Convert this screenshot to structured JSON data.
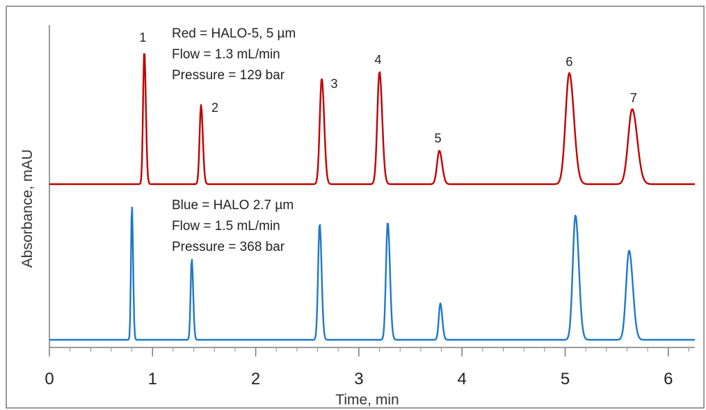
{
  "chart_data": {
    "type": "line",
    "xlabel": "Time, min",
    "ylabel": "Absorbance, mAU",
    "xlim": [
      0,
      6.28
    ],
    "x_ticks": [
      0,
      1,
      2,
      3,
      4,
      5,
      6
    ],
    "x_minor_step": 0.2,
    "grid": false,
    "legend": "none",
    "series": [
      {
        "key": "red",
        "color": "#c00000",
        "annotation_lines": [
          "Red = HALO-5, 5 µm",
          "Flow = 1.3 mL/min",
          "Pressure = 129 bar"
        ],
        "peaks": [
          {
            "label": "1",
            "t": 0.92,
            "height": 1.0,
            "width": 0.012
          },
          {
            "label": "2",
            "t": 1.47,
            "height": 0.59,
            "width": 0.014
          },
          {
            "label": "3",
            "t": 2.64,
            "height": 0.79,
            "width": 0.019
          },
          {
            "label": "4",
            "t": 3.2,
            "height": 0.84,
            "width": 0.021
          },
          {
            "label": "5",
            "t": 3.78,
            "height": 0.25,
            "width": 0.022
          },
          {
            "label": "6",
            "t": 5.04,
            "height": 0.83,
            "width": 0.036
          },
          {
            "label": "7",
            "t": 5.65,
            "height": 0.56,
            "width": 0.039
          }
        ]
      },
      {
        "key": "blue",
        "color": "#1f78c8",
        "annotation_lines": [
          "Blue = HALO 2.7 µm",
          "Flow = 1.5 mL/min",
          "Pressure = 368 bar"
        ],
        "peaks": [
          {
            "t": 0.8,
            "height": 1.0,
            "width": 0.009
          },
          {
            "t": 1.38,
            "height": 0.6,
            "width": 0.011
          },
          {
            "t": 2.62,
            "height": 0.86,
            "width": 0.015
          },
          {
            "t": 3.28,
            "height": 0.87,
            "width": 0.017
          },
          {
            "t": 3.79,
            "height": 0.27,
            "width": 0.015
          },
          {
            "t": 5.1,
            "height": 0.92,
            "width": 0.026
          },
          {
            "t": 5.62,
            "height": 0.66,
            "width": 0.029
          }
        ]
      }
    ]
  }
}
